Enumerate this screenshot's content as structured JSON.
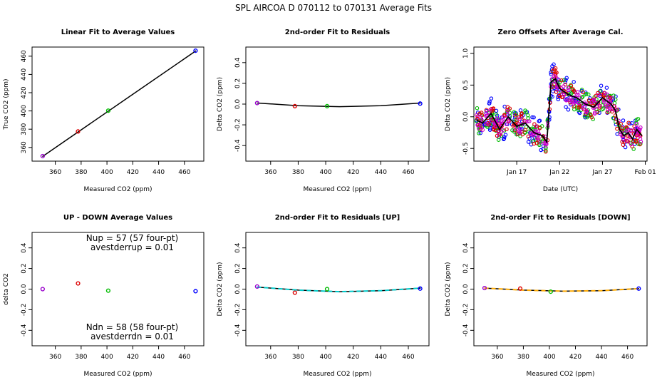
{
  "main_title": "SPL    AIRCOA D    070112 to 070131    Average Fits",
  "colors": {
    "purple": "#9900cc",
    "red": "#dd0000",
    "green": "#00bb00",
    "blue": "#0000ff",
    "black": "#000000",
    "cyan": "#00cccc",
    "orange": "#ffaa00",
    "magenta": "#cc00cc"
  },
  "chart_data": [
    {
      "type": "scatter",
      "title": "Linear Fit to Average Values",
      "xlabel": "Measured CO2 (ppm)",
      "ylabel": "True CO2 (ppm)",
      "xlim": [
        342,
        475
      ],
      "ylim": [
        345,
        470
      ],
      "xticks": [
        "360",
        "380",
        "400",
        "420",
        "440",
        "460"
      ],
      "xtick_values": [
        360,
        380,
        400,
        420,
        440,
        460
      ],
      "yticks": [
        "360",
        "380",
        "400",
        "420",
        "440",
        "460"
      ],
      "ytick_values": [
        360,
        380,
        400,
        420,
        440,
        460
      ],
      "fit_line": {
        "x": [
          350,
          469
        ],
        "y": [
          350,
          466
        ]
      },
      "points": [
        {
          "x": 350.2,
          "y": 350.5,
          "color": "purple"
        },
        {
          "x": 377.6,
          "y": 377.5,
          "color": "red"
        },
        {
          "x": 401.0,
          "y": 400.3,
          "color": "green"
        },
        {
          "x": 468.6,
          "y": 466.0,
          "color": "blue"
        }
      ]
    },
    {
      "type": "scatter",
      "title": "2nd-order Fit to Residuals",
      "xlabel": "Measured CO2 (ppm)",
      "ylabel": "Delta CO2 (ppm)",
      "xlim": [
        342,
        475
      ],
      "ylim": [
        -0.55,
        0.55
      ],
      "xticks": [
        "360",
        "380",
        "400",
        "420",
        "440",
        "460"
      ],
      "xtick_values": [
        360,
        380,
        400,
        420,
        440,
        460
      ],
      "yticks": [
        "-0.4",
        "-0.2",
        "0.0",
        "0.2",
        "0.4"
      ],
      "ytick_values": [
        -0.4,
        -0.2,
        0.0,
        0.2,
        0.4
      ],
      "fit_curve": {
        "x": [
          350,
          380,
          410,
          440,
          469
        ],
        "y": [
          0.01,
          -0.015,
          -0.025,
          -0.015,
          0.01
        ]
      },
      "points": [
        {
          "x": 350.2,
          "y": 0.01,
          "color": "purple"
        },
        {
          "x": 377.6,
          "y": -0.02,
          "color": "red"
        },
        {
          "x": 401.0,
          "y": -0.02,
          "color": "green"
        },
        {
          "x": 468.6,
          "y": 0.005,
          "color": "blue"
        }
      ]
    },
    {
      "type": "scatter",
      "title": "Zero Offsets After Average Cal.",
      "xlabel": "Date (UTC)",
      "ylabel": "Delta CO2 (ppm)",
      "xlim": [
        12,
        32.2
      ],
      "ylim": [
        -0.7,
        1.1
      ],
      "xticks": [
        "Jan 17",
        "Jan 22",
        "Jan 27",
        "Feb 01"
      ],
      "xtick_values": [
        17,
        22,
        27,
        32
      ],
      "yticks": [
        "-0.5",
        "0.0",
        "0.5",
        "1.0"
      ],
      "ytick_values": [
        -0.5,
        0.0,
        0.5,
        1.0
      ],
      "mean_series": {
        "x": [
          12.3,
          13,
          14,
          15,
          16,
          17,
          18,
          19,
          20,
          20.5,
          21,
          21.5,
          22,
          23,
          24,
          25,
          26,
          27,
          28,
          28.5,
          29,
          29.5,
          30,
          30.5,
          31,
          31.6
        ],
        "y": [
          -0.05,
          -0.1,
          0.05,
          -0.2,
          0.0,
          -0.15,
          -0.1,
          -0.25,
          -0.3,
          -0.4,
          0.55,
          0.6,
          0.45,
          0.35,
          0.3,
          0.2,
          0.15,
          0.3,
          0.2,
          0.1,
          -0.2,
          -0.3,
          -0.25,
          -0.35,
          -0.2,
          -0.3
        ]
      },
      "scatter_series": [
        {
          "name": "blue",
          "color": "blue",
          "spread": 0.25
        },
        {
          "name": "green",
          "color": "green",
          "spread": 0.2
        },
        {
          "name": "red",
          "color": "red",
          "spread": 0.18
        },
        {
          "name": "magenta",
          "color": "magenta",
          "spread": 0.12
        }
      ]
    },
    {
      "type": "scatter",
      "title": "UP - DOWN Average Values",
      "xlabel": "Measured CO2 (ppm)",
      "ylabel": "delta CO2",
      "xlim": [
        342,
        475
      ],
      "ylim": [
        -0.55,
        0.55
      ],
      "xticks": [
        "360",
        "380",
        "400",
        "420",
        "440",
        "460"
      ],
      "xtick_values": [
        360,
        380,
        400,
        420,
        440,
        460
      ],
      "yticks": [
        "-0.4",
        "-0.2",
        "0.0",
        "0.2",
        "0.4"
      ],
      "ytick_values": [
        -0.4,
        -0.2,
        0.0,
        0.2,
        0.4
      ],
      "annotations": {
        "nup": "Nup = 57 (57 four-pt)",
        "avestderrup": "avestderrup =  0.01",
        "ndn": "Ndn = 58 (58 four-pt)",
        "avestderrdn": "avestderrdn =  0.01"
      },
      "points": [
        {
          "x": 350.2,
          "y": 0.0,
          "color": "purple"
        },
        {
          "x": 377.6,
          "y": 0.055,
          "color": "red"
        },
        {
          "x": 401.0,
          "y": -0.015,
          "color": "green"
        },
        {
          "x": 468.6,
          "y": -0.02,
          "color": "blue"
        }
      ]
    },
    {
      "type": "scatter",
      "title": "2nd-order Fit to Residuals [UP]",
      "xlabel": "Measured CO2 (ppm)",
      "ylabel": "Delta CO2 (ppm)",
      "xlim": [
        342,
        475
      ],
      "ylim": [
        -0.55,
        0.55
      ],
      "xticks": [
        "360",
        "380",
        "400",
        "420",
        "440",
        "460"
      ],
      "xtick_values": [
        360,
        380,
        400,
        420,
        440,
        460
      ],
      "yticks": [
        "-0.4",
        "-0.2",
        "0.0",
        "0.2",
        "0.4"
      ],
      "ytick_values": [
        -0.4,
        -0.2,
        0.0,
        0.2,
        0.4
      ],
      "fit_color": "cyan",
      "fit_curve": {
        "x": [
          350,
          380,
          410,
          440,
          469
        ],
        "y": [
          0.02,
          -0.01,
          -0.025,
          -0.015,
          0.01
        ]
      },
      "points": [
        {
          "x": 350.2,
          "y": 0.025,
          "color": "purple"
        },
        {
          "x": 377.6,
          "y": -0.035,
          "color": "red"
        },
        {
          "x": 401.0,
          "y": 0.0,
          "color": "green"
        },
        {
          "x": 468.6,
          "y": 0.005,
          "color": "blue"
        }
      ]
    },
    {
      "type": "scatter",
      "title": "2nd-order Fit to Residuals [DOWN]",
      "xlabel": "Measured CO2 (ppm)",
      "ylabel": "Delta CO2 (ppm)",
      "xlim": [
        342,
        475
      ],
      "ylim": [
        -0.55,
        0.55
      ],
      "xticks": [
        "360",
        "380",
        "400",
        "420",
        "440",
        "460"
      ],
      "xtick_values": [
        360,
        380,
        400,
        420,
        440,
        460
      ],
      "yticks": [
        "-0.4",
        "-0.2",
        "0.0",
        "0.2",
        "0.4"
      ],
      "ytick_values": [
        -0.4,
        -0.2,
        0.0,
        0.2,
        0.4
      ],
      "fit_color": "orange",
      "fit_curve": {
        "x": [
          350,
          380,
          410,
          440,
          469
        ],
        "y": [
          0.01,
          -0.01,
          -0.02,
          -0.015,
          0.005
        ]
      },
      "points": [
        {
          "x": 350.2,
          "y": 0.01,
          "color": "purple"
        },
        {
          "x": 377.6,
          "y": 0.005,
          "color": "red"
        },
        {
          "x": 401.0,
          "y": -0.025,
          "color": "green"
        },
        {
          "x": 468.6,
          "y": 0.005,
          "color": "blue"
        }
      ]
    }
  ]
}
